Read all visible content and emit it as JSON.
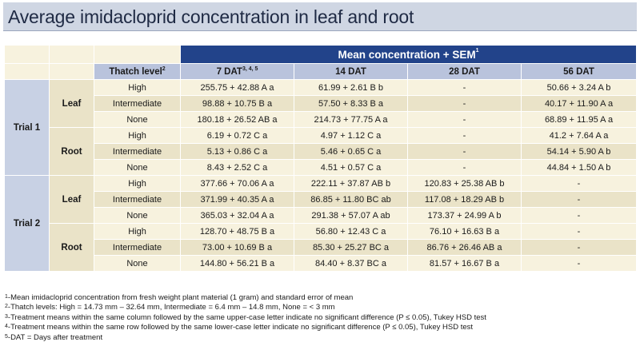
{
  "title": "Average imidacloprid concentration in leaf and root",
  "header": {
    "group_label": "Mean concentration + SEM",
    "group_sup": "1",
    "thatch_label": "Thatch level",
    "thatch_sup": "2",
    "columns": [
      {
        "label": "7 DAT",
        "sup": "3, 4, 5"
      },
      {
        "label": "14 DAT",
        "sup": ""
      },
      {
        "label": "28 DAT",
        "sup": ""
      },
      {
        "label": "56 DAT",
        "sup": ""
      }
    ]
  },
  "trials": [
    {
      "label": "Trial 1",
      "tissues": [
        {
          "label": "Leaf",
          "rows": [
            {
              "level": "High",
              "values": [
                "255.75 + 42.88 A a",
                "61.99 + 2.61 B b",
                "-",
                "50.66 + 3.24 A b"
              ]
            },
            {
              "level": "Intermediate",
              "values": [
                "98.88 + 10.75 B a",
                "57.50 + 8.33 B a",
                "-",
                "40.17 + 11.90 A a"
              ]
            },
            {
              "level": "None",
              "values": [
                "180.18 + 26.52 AB a",
                "214.73 + 77.75 A a",
                "-",
                "68.89 + 11.95 A a"
              ]
            }
          ]
        },
        {
          "label": "Root",
          "rows": [
            {
              "level": "High",
              "values": [
                "6.19 + 0.72 C a",
                "4.97 + 1.12 C a",
                "-",
                "41.2 + 7.64 A a"
              ]
            },
            {
              "level": "Intermediate",
              "values": [
                "5.13 + 0.86 C a",
                "5.46 + 0.65 C a",
                "-",
                "54.14 + 5.90 A b"
              ]
            },
            {
              "level": "None",
              "values": [
                "8.43 + 2.52 C a",
                "4.51 + 0.57 C a",
                "-",
                "44.84 + 1.50 A b"
              ]
            }
          ]
        }
      ]
    },
    {
      "label": "Trial 2",
      "tissues": [
        {
          "label": "Leaf",
          "rows": [
            {
              "level": "High",
              "values": [
                "377.66 + 70.06 A a",
                "222.11 + 37.87 AB b",
                "120.83 + 25.38 AB b",
                "-"
              ]
            },
            {
              "level": "Intermediate",
              "values": [
                "371.99 + 40.35 A a",
                "86.85 + 11.80 BC ab",
                "117.08 + 18.29 AB b",
                "-"
              ]
            },
            {
              "level": "None",
              "values": [
                "365.03 + 32.04 A a",
                "291.38 + 57.07 A ab",
                "173.37 + 24.99 A b",
                "-"
              ]
            }
          ]
        },
        {
          "label": "Root",
          "rows": [
            {
              "level": "High",
              "values": [
                "128.70 + 48.75 B a",
                "56.80 + 12.43 C a",
                "76.10 + 16.63 B a",
                "-"
              ]
            },
            {
              "level": "Intermediate",
              "values": [
                "73.00 + 10.69 B a",
                "85.30 + 25.27 BC a",
                "86.76 + 26.46 AB a",
                "-"
              ]
            },
            {
              "level": "None",
              "values": [
                "144.80 + 56.21 B a",
                "84.40 + 8.37 BC a",
                "81.57 + 16.67 B a",
                "-"
              ]
            }
          ]
        }
      ]
    }
  ],
  "footnotes": [
    {
      "num": "1",
      "text": "-Mean imidacloprid concentration from fresh weight plant material (1 gram) and standard error of mean"
    },
    {
      "num": "2",
      "text": "-Thatch levels: High = 14.73 mm – 32.64 mm, Intermediate = 6.4 mm – 14.8 mm, None = < 3 mm"
    },
    {
      "num": "3",
      "text": "-Treatment means within the same column followed by the same upper-case letter indicate no significant difference (P ≤ 0.05), Tukey HSD test"
    },
    {
      "num": "4",
      "text": "-Treatment means within the same row followed by the same lower-case letter indicate no significant difference (P ≤ 0.05), Tukey HSD test"
    },
    {
      "num": "5",
      "text": "-DAT = Days after treatment"
    }
  ]
}
